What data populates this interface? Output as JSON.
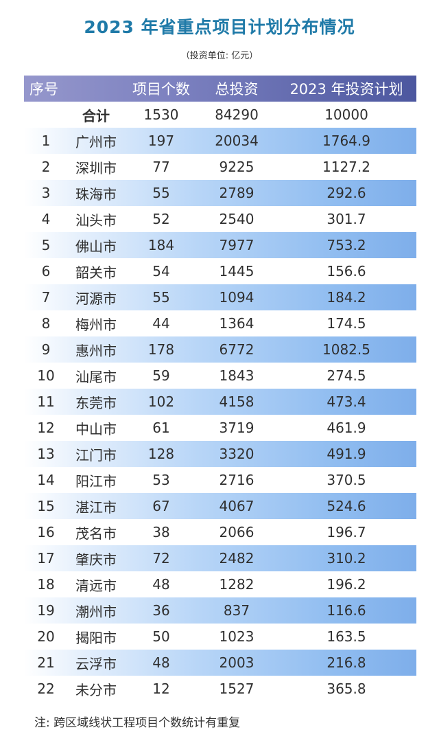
{
  "title": "2023 年省重点项目计划分布情况",
  "unit": "（投资单位: 亿元）",
  "colors": {
    "title": "#1f7aa8",
    "header_start": "#9597cc",
    "header_end": "#4c579f",
    "row_highlight": "#7eaeea"
  },
  "header": [
    "序号",
    "",
    "项目个数",
    "总投资",
    "2023 年投资计划"
  ],
  "total": {
    "label": "合计",
    "count": "1530",
    "investment": "84290",
    "plan_2023": "10000"
  },
  "rows": [
    [
      "1",
      "广州市",
      "197",
      "20034",
      "1764.9"
    ],
    [
      "2",
      "深圳市",
      "77",
      "9225",
      "1127.2"
    ],
    [
      "3",
      "珠海市",
      "55",
      "2789",
      "292.6"
    ],
    [
      "4",
      "汕头市",
      "52",
      "2540",
      "301.7"
    ],
    [
      "5",
      "佛山市",
      "184",
      "7977",
      "753.2"
    ],
    [
      "6",
      "韶关市",
      "54",
      "1445",
      "156.6"
    ],
    [
      "7",
      "河源市",
      "55",
      "1094",
      "184.2"
    ],
    [
      "8",
      "梅州市",
      "44",
      "1364",
      "174.5"
    ],
    [
      "9",
      "惠州市",
      "178",
      "6772",
      "1082.5"
    ],
    [
      "10",
      "汕尾市",
      "59",
      "1843",
      "274.5"
    ],
    [
      "11",
      "东莞市",
      "102",
      "4158",
      "473.4"
    ],
    [
      "12",
      "中山市",
      "61",
      "3719",
      "461.9"
    ],
    [
      "13",
      "江门市",
      "128",
      "3320",
      "491.9"
    ],
    [
      "14",
      "阳江市",
      "53",
      "2716",
      "370.5"
    ],
    [
      "15",
      "湛江市",
      "67",
      "4067",
      "524.6"
    ],
    [
      "16",
      "茂名市",
      "38",
      "2066",
      "196.7"
    ],
    [
      "17",
      "肇庆市",
      "72",
      "2482",
      "310.2"
    ],
    [
      "18",
      "清远市",
      "48",
      "1282",
      "196.2"
    ],
    [
      "19",
      "潮州市",
      "36",
      "837",
      "116.6"
    ],
    [
      "20",
      "揭阳市",
      "50",
      "1023",
      "163.5"
    ],
    [
      "21",
      "云浮市",
      "48",
      "2003",
      "216.8"
    ],
    [
      "22",
      "未分市",
      "12",
      "1527",
      "365.8"
    ]
  ],
  "note": "注: 跨区域线状工程项目个数统计有重复"
}
